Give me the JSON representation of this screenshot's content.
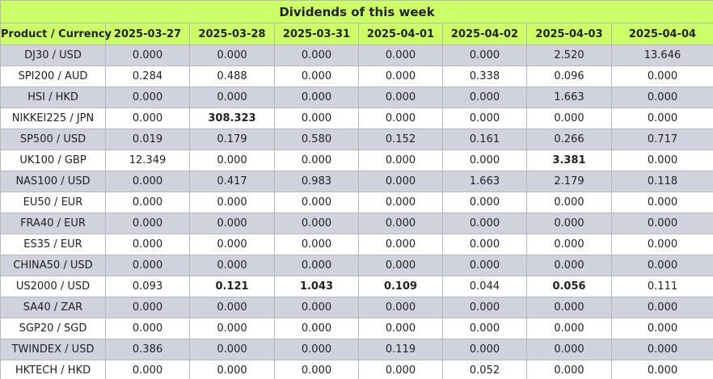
{
  "title": "Dividends of this week",
  "header": {
    "product": "Product / Currency",
    "dates": [
      "2025-03-27",
      "2025-03-28",
      "2025-03-31",
      "2025-04-01",
      "2025-04-02",
      "2025-04-03",
      "2025-04-04"
    ]
  },
  "rows": [
    {
      "product": "DJ30 / USD",
      "values": [
        "0.000",
        "0.000",
        "0.000",
        "0.000",
        "0.000",
        "2.520",
        "13.646"
      ],
      "bold": [
        false,
        false,
        false,
        false,
        false,
        false,
        false
      ]
    },
    {
      "product": "SPI200 / AUD",
      "values": [
        "0.284",
        "0.488",
        "0.000",
        "0.000",
        "0.338",
        "0.096",
        "0.000"
      ],
      "bold": [
        false,
        false,
        false,
        false,
        false,
        false,
        false
      ]
    },
    {
      "product": "HSI / HKD",
      "values": [
        "0.000",
        "0.000",
        "0.000",
        "0.000",
        "0.000",
        "1.663",
        "0.000"
      ],
      "bold": [
        false,
        false,
        false,
        false,
        false,
        false,
        false
      ]
    },
    {
      "product": "NIKKEI225 / JPN",
      "values": [
        "0.000",
        "308.323",
        "0.000",
        "0.000",
        "0.000",
        "0.000",
        "0.000"
      ],
      "bold": [
        false,
        true,
        false,
        false,
        false,
        false,
        false
      ]
    },
    {
      "product": "SP500 / USD",
      "values": [
        "0.019",
        "0.179",
        "0.580",
        "0.152",
        "0.161",
        "0.266",
        "0.717"
      ],
      "bold": [
        false,
        false,
        false,
        false,
        false,
        false,
        false
      ]
    },
    {
      "product": "UK100 / GBP",
      "values": [
        "12.349",
        "0.000",
        "0.000",
        "0.000",
        "0.000",
        "3.381",
        "0.000"
      ],
      "bold": [
        false,
        false,
        false,
        false,
        false,
        true,
        false
      ]
    },
    {
      "product": "NAS100 / USD",
      "values": [
        "0.000",
        "0.417",
        "0.983",
        "0.000",
        "1.663",
        "2.179",
        "0.118"
      ],
      "bold": [
        false,
        false,
        false,
        false,
        false,
        false,
        false
      ]
    },
    {
      "product": "EU50 / EUR",
      "values": [
        "0.000",
        "0.000",
        "0.000",
        "0.000",
        "0.000",
        "0.000",
        "0.000"
      ],
      "bold": [
        false,
        false,
        false,
        false,
        false,
        false,
        false
      ]
    },
    {
      "product": "FRA40 / EUR",
      "values": [
        "0.000",
        "0.000",
        "0.000",
        "0.000",
        "0.000",
        "0.000",
        "0.000"
      ],
      "bold": [
        false,
        false,
        false,
        false,
        false,
        false,
        false
      ]
    },
    {
      "product": "ES35 / EUR",
      "values": [
        "0.000",
        "0.000",
        "0.000",
        "0.000",
        "0.000",
        "0.000",
        "0.000"
      ],
      "bold": [
        false,
        false,
        false,
        false,
        false,
        false,
        false
      ]
    },
    {
      "product": "CHINA50 / USD",
      "values": [
        "0.000",
        "0.000",
        "0.000",
        "0.000",
        "0.000",
        "0.000",
        "0.000"
      ],
      "bold": [
        false,
        false,
        false,
        false,
        false,
        false,
        false
      ]
    },
    {
      "product": "US2000 / USD",
      "values": [
        "0.093",
        "0.121",
        "1.043",
        "0.109",
        "0.044",
        "0.056",
        "0.111"
      ],
      "bold": [
        false,
        true,
        true,
        true,
        false,
        true,
        false
      ]
    },
    {
      "product": "SA40 / ZAR",
      "values": [
        "0.000",
        "0.000",
        "0.000",
        "0.000",
        "0.000",
        "0.000",
        "0.000"
      ],
      "bold": [
        false,
        false,
        false,
        false,
        false,
        false,
        false
      ]
    },
    {
      "product": "SGP20 / SGD",
      "values": [
        "0.000",
        "0.000",
        "0.000",
        "0.000",
        "0.000",
        "0.000",
        "0.000"
      ],
      "bold": [
        false,
        false,
        false,
        false,
        false,
        false,
        false
      ]
    },
    {
      "product": "TWINDEX / USD",
      "values": [
        "0.386",
        "0.000",
        "0.000",
        "0.119",
        "0.000",
        "0.000",
        "0.000"
      ],
      "bold": [
        false,
        false,
        false,
        false,
        false,
        false,
        false
      ]
    },
    {
      "product": "HKTECH / HKD",
      "values": [
        "0.000",
        "0.000",
        "0.000",
        "0.000",
        "0.052",
        "0.000",
        "0.000"
      ],
      "bold": [
        false,
        false,
        false,
        false,
        false,
        false,
        false
      ]
    }
  ],
  "colors": {
    "header_bg": "#ccff66",
    "odd_row_bg": "#d0d3de",
    "even_row_bg": "#ffffff",
    "border": "#b8b8b8"
  }
}
